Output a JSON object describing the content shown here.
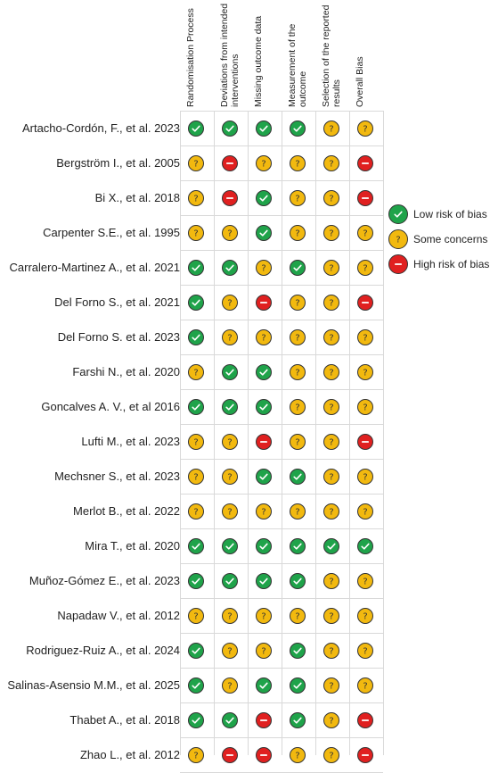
{
  "columns": [
    "Randomisation Process",
    "Deviations from intended interventions",
    "Missing outcome data",
    "Measurement of the outcome",
    "Selection of the reported results",
    "Overall Bias"
  ],
  "legend": [
    {
      "key": "low",
      "label": "Low risk of bias"
    },
    {
      "key": "some",
      "label": "Some concerns"
    },
    {
      "key": "high",
      "label": "High risk of bias"
    }
  ],
  "colors": {
    "low": "#1fa34a",
    "some": "#f2b90f",
    "high": "#e02020"
  },
  "studies": [
    {
      "name": "Artacho-Cordón, F., et al. 2023",
      "ratings": [
        "low",
        "low",
        "low",
        "low",
        "some",
        "some"
      ]
    },
    {
      "name": "Bergström I., et al. 2005",
      "ratings": [
        "some",
        "high",
        "some",
        "some",
        "some",
        "high"
      ]
    },
    {
      "name": "Bi X., et al. 2018",
      "ratings": [
        "some",
        "high",
        "low",
        "some",
        "some",
        "high"
      ]
    },
    {
      "name": "Carpenter S.E., et al. 1995",
      "ratings": [
        "some",
        "some",
        "low",
        "some",
        "some",
        "some"
      ]
    },
    {
      "name": "Carralero-Martinez A., et al. 2021",
      "ratings": [
        "low",
        "low",
        "some",
        "low",
        "some",
        "some"
      ]
    },
    {
      "name": "Del Forno S., et al. 2021",
      "ratings": [
        "low",
        "some",
        "high",
        "some",
        "some",
        "high"
      ]
    },
    {
      "name": "Del Forno S. et al. 2023",
      "ratings": [
        "low",
        "some",
        "some",
        "some",
        "some",
        "some"
      ]
    },
    {
      "name": "Farshi N., et al. 2020",
      "ratings": [
        "some",
        "low",
        "low",
        "some",
        "some",
        "some"
      ]
    },
    {
      "name": "Goncalves A. V., et al 2016",
      "ratings": [
        "low",
        "low",
        "low",
        "some",
        "some",
        "some"
      ]
    },
    {
      "name": "Lufti M., et al. 2023",
      "ratings": [
        "some",
        "some",
        "high",
        "some",
        "some",
        "high"
      ]
    },
    {
      "name": "Mechsner S., et al. 2023",
      "ratings": [
        "some",
        "some",
        "low",
        "low",
        "some",
        "some"
      ]
    },
    {
      "name": "Merlot B., et al. 2022",
      "ratings": [
        "some",
        "some",
        "some",
        "some",
        "some",
        "some"
      ]
    },
    {
      "name": "Mira T., et al. 2020",
      "ratings": [
        "low",
        "low",
        "low",
        "low",
        "low",
        "low"
      ]
    },
    {
      "name": "Muñoz-Gómez E., et al. 2023",
      "ratings": [
        "low",
        "low",
        "low",
        "low",
        "some",
        "some"
      ]
    },
    {
      "name": "Napadaw V., et al. 2012",
      "ratings": [
        "some",
        "some",
        "some",
        "some",
        "some",
        "some"
      ]
    },
    {
      "name": "Rodriguez-Ruiz A., et al. 2024",
      "ratings": [
        "low",
        "some",
        "some",
        "low",
        "some",
        "some"
      ]
    },
    {
      "name": "Salinas-Asensio M.M., et al. 2025",
      "ratings": [
        "low",
        "some",
        "low",
        "low",
        "some",
        "some"
      ]
    },
    {
      "name": "Thabet A., et al. 2018",
      "ratings": [
        "low",
        "low",
        "high",
        "low",
        "some",
        "high"
      ]
    },
    {
      "name": "Zhao L., et al. 2012",
      "ratings": [
        "some",
        "high",
        "high",
        "some",
        "some",
        "high"
      ]
    }
  ]
}
